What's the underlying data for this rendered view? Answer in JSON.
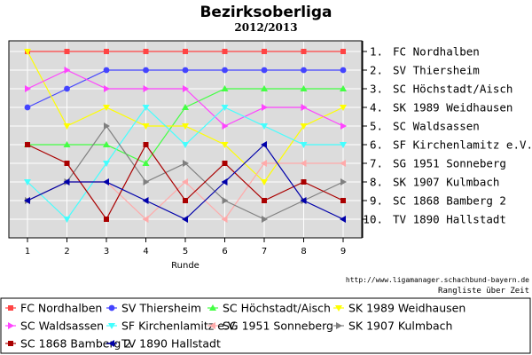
{
  "chart_data": {
    "type": "line",
    "title": "Bezirksoberliga",
    "subtitle": "2012/2013",
    "xlabel": "Runde",
    "ylabel": "",
    "x": [
      1,
      2,
      3,
      4,
      5,
      6,
      7,
      8,
      9
    ],
    "xlim": [
      1,
      9
    ],
    "ylim": [
      1,
      10
    ],
    "y_inverted": true,
    "grid": true,
    "legend_position": "bottom",
    "source_url": "http://www.ligamanager.schachbund-bayern.de",
    "footer_label": "Rangliste über Zeit",
    "final_ranking": [
      "1. FC Nordhalben",
      "2. SV Thiersheim",
      "3. SC Höchstadt/Aisch",
      "4. SK 1989 Weidhausen",
      "5. SC Waldsassen",
      "6. SF Kirchenlamitz e.V.",
      "7. SG 1951 Sonneberg",
      "8. SK 1907 Kulmbach",
      "9. SC 1868 Bamberg 2",
      "10. TV 1890 Hallstadt"
    ],
    "series": [
      {
        "name": "FC Nordhalben",
        "color": "#ff4444",
        "marker": "square",
        "values": [
          1,
          1,
          1,
          1,
          1,
          1,
          1,
          1,
          1
        ]
      },
      {
        "name": "SV Thiersheim",
        "color": "#4444ff",
        "marker": "circle",
        "values": [
          4,
          3,
          2,
          2,
          2,
          2,
          2,
          2,
          2
        ]
      },
      {
        "name": "SC Höchstadt/Aisch",
        "color": "#44ff44",
        "marker": "triangle-up",
        "values": [
          6,
          6,
          6,
          7,
          4,
          3,
          3,
          3,
          3
        ]
      },
      {
        "name": "SK 1989 Weidhausen",
        "color": "#ffff00",
        "marker": "triangle-down",
        "values": [
          1,
          5,
          4,
          5,
          5,
          6,
          8,
          5,
          4
        ]
      },
      {
        "name": "SC Waldsassen",
        "color": "#ff44ff",
        "marker": "triangle-right",
        "values": [
          3,
          2,
          3,
          3,
          3,
          5,
          4,
          4,
          5
        ]
      },
      {
        "name": "SF Kirchenlamitz e.V.",
        "color": "#44ffff",
        "marker": "triangle-down",
        "values": [
          8,
          10,
          7,
          4,
          6,
          4,
          5,
          6,
          6
        ]
      },
      {
        "name": "SG 1951 Sonneberg",
        "color": "#ffaaaa",
        "marker": "triangle-left",
        "values": [
          9,
          8,
          8,
          10,
          8,
          10,
          7,
          7,
          7
        ]
      },
      {
        "name": "SK 1907 Kulmbach",
        "color": "#808080",
        "marker": "triangle-right",
        "values": [
          9,
          8,
          5,
          8,
          7,
          9,
          10,
          9,
          8
        ]
      },
      {
        "name": "SC 1868 Bamberg 2",
        "color": "#aa0000",
        "marker": "square",
        "values": [
          6,
          7,
          10,
          6,
          9,
          7,
          9,
          8,
          9
        ]
      },
      {
        "name": "TV 1890 Hallstadt",
        "color": "#0000aa",
        "marker": "triangle-left",
        "values": [
          9,
          8,
          8,
          9,
          10,
          8,
          6,
          9,
          10
        ]
      }
    ]
  }
}
